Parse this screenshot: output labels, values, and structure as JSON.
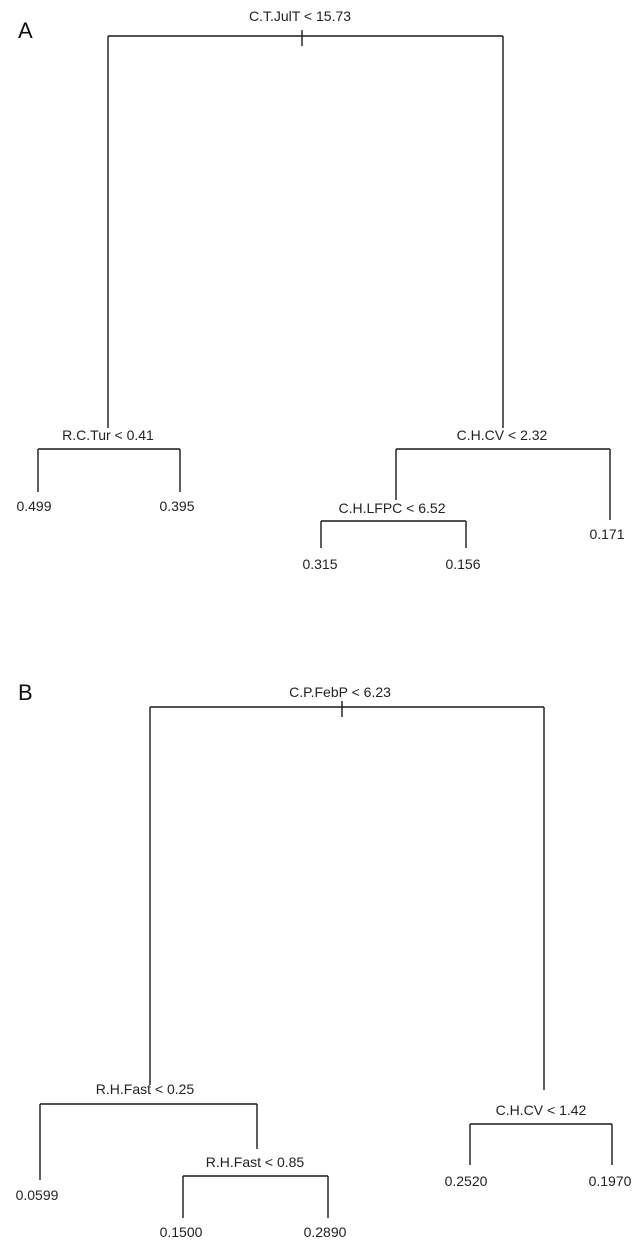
{
  "panels": [
    {
      "label": "A",
      "root": "C.T.JulT < 15.73",
      "left": {
        "split": "R.C.Tur < 0.41",
        "leaves": [
          "0.499",
          "0.395"
        ]
      },
      "right": {
        "split": "C.H.CV < 2.32",
        "inner_split": "C.H.LFPC < 6.52",
        "inner_leaves": [
          "0.315",
          "0.156"
        ],
        "leaf": "0.171"
      }
    },
    {
      "label": "B",
      "root": "C.P.FebP < 6.23",
      "left": {
        "split": "R.H.Fast < 0.25",
        "leaf": "0.0599",
        "inner_split": "R.H.Fast < 0.85",
        "inner_leaves": [
          "0.1500",
          "0.2890"
        ]
      },
      "right": {
        "split": "C.H.CV < 1.42",
        "leaves": [
          "0.2520",
          "0.1970"
        ]
      }
    }
  ]
}
